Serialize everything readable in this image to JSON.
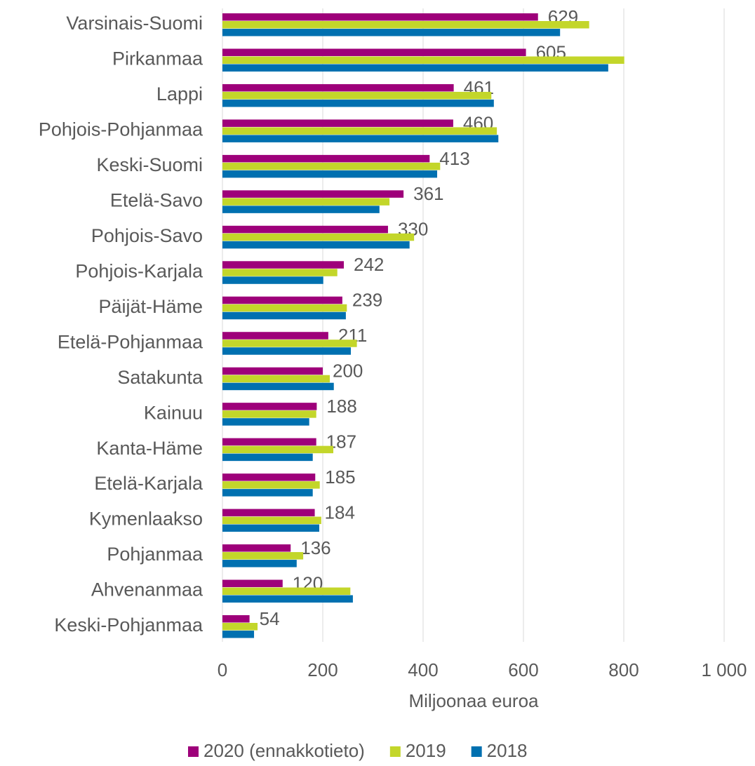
{
  "chart_data": {
    "type": "bar",
    "orientation": "horizontal",
    "x_label": "Miljoonaa euroa",
    "categories": [
      "Varsinais-Suomi",
      "Pirkanmaa",
      "Lappi",
      "Pohjois-Pohjanmaa",
      "Keski-Suomi",
      "Etelä-Savo",
      "Pohjois-Savo",
      "Pohjois-Karjala",
      "Päijät-Häme",
      "Etelä-Pohjanmaa",
      "Satakunta",
      "Kainuu",
      "Kanta-Häme",
      "Etelä-Karjala",
      "Kymenlaakso",
      "Pohjanmaa",
      "Ahvenanmaa",
      "Keski-Pohjanmaa"
    ],
    "series": [
      {
        "name": "2020 (ennakkotieto)",
        "color": "#9e007a",
        "data_labels": true,
        "values": [
          629,
          605,
          461,
          460,
          413,
          361,
          330,
          242,
          239,
          211,
          200,
          188,
          187,
          185,
          184,
          136,
          120,
          54
        ]
      },
      {
        "name": "2019",
        "color": "#c3d62a",
        "values": [
          731,
          801,
          536,
          547,
          434,
          333,
          382,
          229,
          248,
          268,
          214,
          187,
          221,
          194,
          197,
          161,
          255,
          70
        ]
      },
      {
        "name": "2018",
        "color": "#0070b0",
        "values": [
          673,
          769,
          541,
          550,
          428,
          313,
          373,
          201,
          246,
          256,
          222,
          173,
          180,
          180,
          193,
          148,
          260,
          63
        ]
      }
    ],
    "xlim": [
      0,
      1000
    ],
    "xticks": [
      0,
      200,
      400,
      600,
      800,
      {
        "value": 1000,
        "label": "1 000"
      }
    ],
    "grid": true,
    "legend": "bottom"
  }
}
